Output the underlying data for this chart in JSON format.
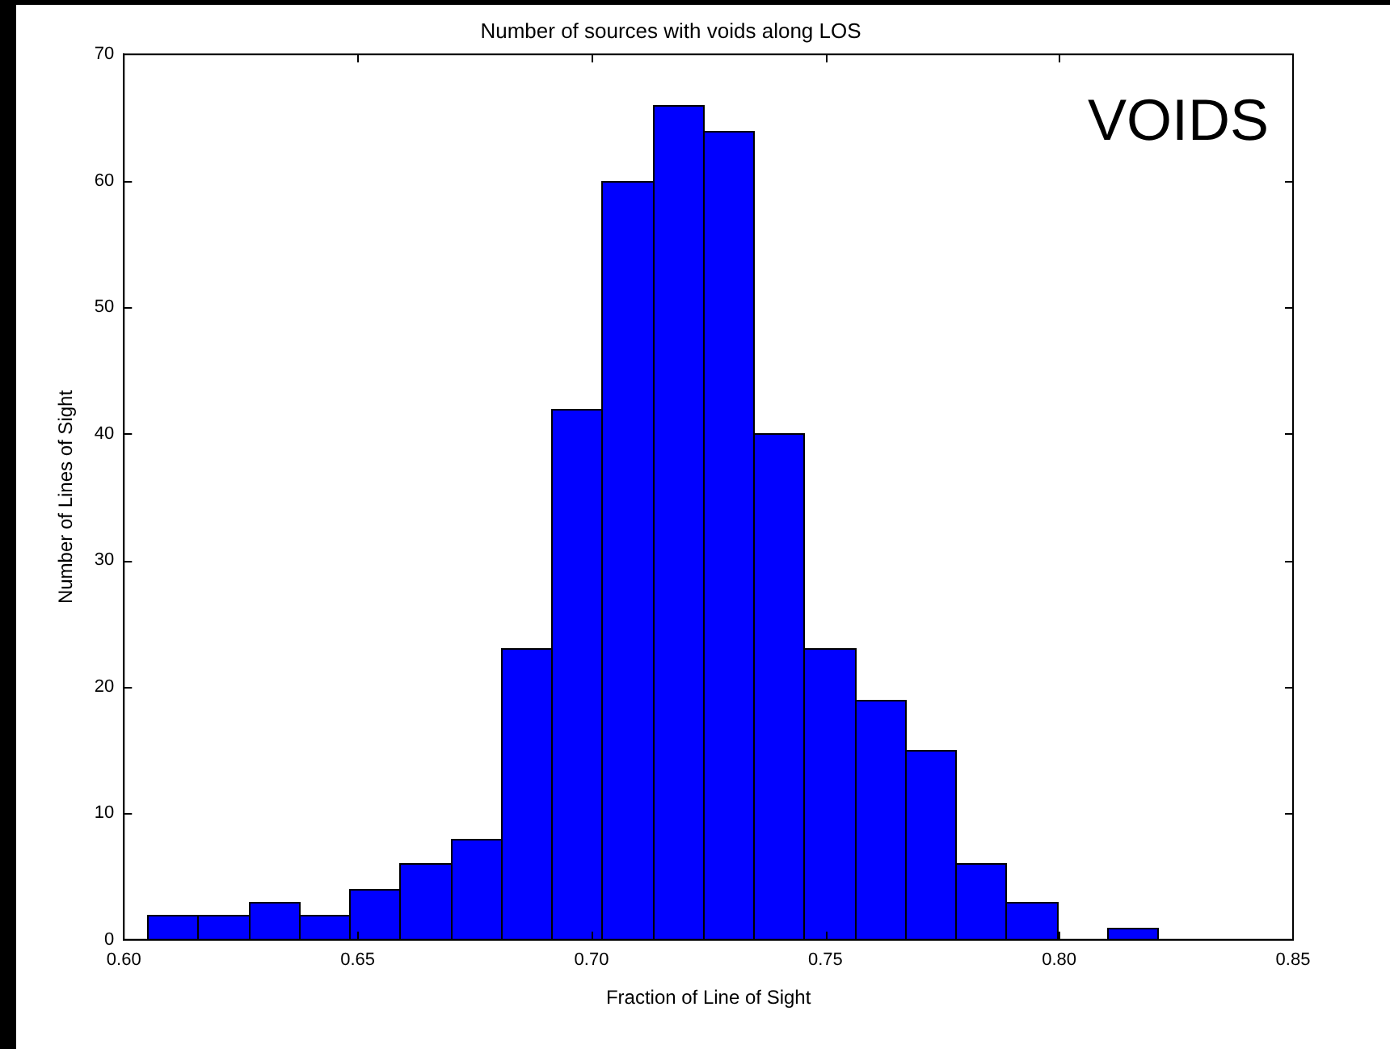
{
  "chart_data": {
    "type": "histogram",
    "title": "Number of sources with voids along LOS",
    "xlabel": "Fraction of Line of Sight",
    "ylabel": "Number of Lines of Sight",
    "annotations": [
      "VOIDS"
    ],
    "bins": [
      0.605,
      0.6158,
      0.6266,
      0.6374,
      0.6482,
      0.659,
      0.6698,
      0.6806,
      0.6914,
      0.7022,
      0.713,
      0.7238,
      0.7346,
      0.7454,
      0.7562,
      0.767,
      0.7778,
      0.7886,
      0.7994,
      0.8102,
      0.821
    ],
    "values": [
      2,
      2,
      3,
      2,
      4,
      6,
      8,
      23,
      42,
      60,
      66,
      64,
      40,
      23,
      19,
      15,
      6,
      3,
      0,
      1
    ],
    "color": "#0000ff",
    "xlim": [
      0.6,
      0.85
    ],
    "xticks": [
      {
        "value": 0.6,
        "label": "0.60"
      },
      {
        "value": 0.65,
        "label": "0.65"
      },
      {
        "value": 0.7,
        "label": "0.70"
      },
      {
        "value": 0.75,
        "label": "0.75"
      },
      {
        "value": 0.8,
        "label": "0.80"
      },
      {
        "value": 0.85,
        "label": "0.85"
      }
    ],
    "ylim": [
      0,
      70
    ],
    "yticks": [
      0,
      10,
      20,
      30,
      40,
      50,
      60,
      70
    ],
    "grid": false,
    "legend": false
  }
}
